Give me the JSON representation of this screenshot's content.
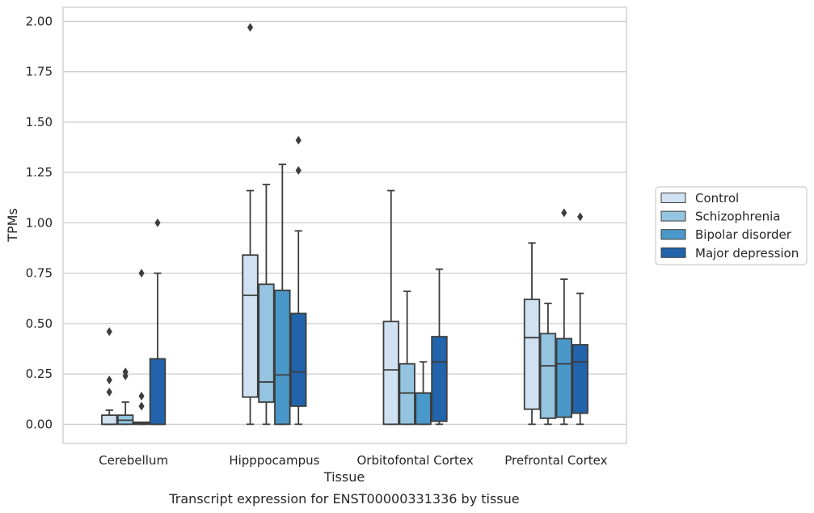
{
  "chart_data": {
    "type": "boxplot",
    "caption": "Transcript expression for ENST00000331336 by tissue",
    "xlabel": "Tissue",
    "ylabel": "TPMs",
    "ylim": [
      -0.095,
      2.07
    ],
    "yticks": [
      0.0,
      0.25,
      0.5,
      0.75,
      1.0,
      1.25,
      1.5,
      1.75,
      2.0
    ],
    "ytick_labels": [
      "0.00",
      "0.25",
      "0.50",
      "0.75",
      "1.00",
      "1.25",
      "1.50",
      "1.75",
      "2.00"
    ],
    "grid": "horizontal",
    "legend_position": "right",
    "categories": [
      "Cerebellum",
      "Hipppocampus",
      "Orbitofontal Cortex",
      "Prefrontal Cortex"
    ],
    "series": [
      {
        "name": "Control",
        "color": "#d0e1f2",
        "boxes": [
          {
            "whislo": 0.0,
            "q1": 0.0,
            "med": 0.0,
            "q3": 0.045,
            "whishi": 0.07,
            "fliers": [
              0.16,
              0.22,
              0.46
            ]
          },
          {
            "whislo": 0.0,
            "q1": 0.135,
            "med": 0.64,
            "q3": 0.84,
            "whishi": 1.16,
            "fliers": [
              1.97
            ]
          },
          {
            "whislo": 0.0,
            "q1": 0.0,
            "med": 0.27,
            "q3": 0.51,
            "whishi": 1.16,
            "fliers": []
          },
          {
            "whislo": 0.0,
            "q1": 0.075,
            "med": 0.43,
            "q3": 0.62,
            "whishi": 0.9,
            "fliers": []
          }
        ]
      },
      {
        "name": "Schizophrenia",
        "color": "#94c4df",
        "boxes": [
          {
            "whislo": 0.0,
            "q1": 0.0,
            "med": 0.02,
            "q3": 0.045,
            "whishi": 0.11,
            "fliers": [
              0.24,
              0.26
            ]
          },
          {
            "whislo": 0.0,
            "q1": 0.11,
            "med": 0.21,
            "q3": 0.695,
            "whishi": 1.19,
            "fliers": []
          },
          {
            "whislo": 0.0,
            "q1": 0.0,
            "med": 0.155,
            "q3": 0.3,
            "whishi": 0.66,
            "fliers": []
          },
          {
            "whislo": 0.0,
            "q1": 0.03,
            "med": 0.29,
            "q3": 0.45,
            "whishi": 0.6,
            "fliers": []
          }
        ]
      },
      {
        "name": "Bipolar disorder",
        "color": "#4a98c9",
        "boxes": [
          {
            "whislo": 0.0,
            "q1": 0.0,
            "med": 0.005,
            "q3": 0.01,
            "whishi": 0.01,
            "fliers": [
              0.09,
              0.14,
              0.75
            ]
          },
          {
            "whislo": 0.0,
            "q1": 0.0,
            "med": 0.245,
            "q3": 0.665,
            "whishi": 1.29,
            "fliers": []
          },
          {
            "whislo": 0.0,
            "q1": 0.0,
            "med": 0.155,
            "q3": 0.155,
            "whishi": 0.31,
            "fliers": []
          },
          {
            "whislo": 0.0,
            "q1": 0.035,
            "med": 0.3,
            "q3": 0.425,
            "whishi": 0.72,
            "fliers": [
              1.05
            ]
          }
        ]
      },
      {
        "name": "Major depression",
        "color": "#2164ab",
        "boxes": [
          {
            "whislo": 0.0,
            "q1": 0.0,
            "med": 0.0,
            "q3": 0.325,
            "whishi": 0.75,
            "fliers": [
              1.0
            ]
          },
          {
            "whislo": 0.0,
            "q1": 0.09,
            "med": 0.26,
            "q3": 0.55,
            "whishi": 0.96,
            "fliers": [
              1.26,
              1.41
            ]
          },
          {
            "whislo": 0.0,
            "q1": 0.015,
            "med": 0.31,
            "q3": 0.435,
            "whishi": 0.77,
            "fliers": []
          },
          {
            "whislo": 0.0,
            "q1": 0.055,
            "med": 0.31,
            "q3": 0.395,
            "whishi": 0.65,
            "fliers": [
              1.03
            ]
          }
        ]
      }
    ]
  }
}
